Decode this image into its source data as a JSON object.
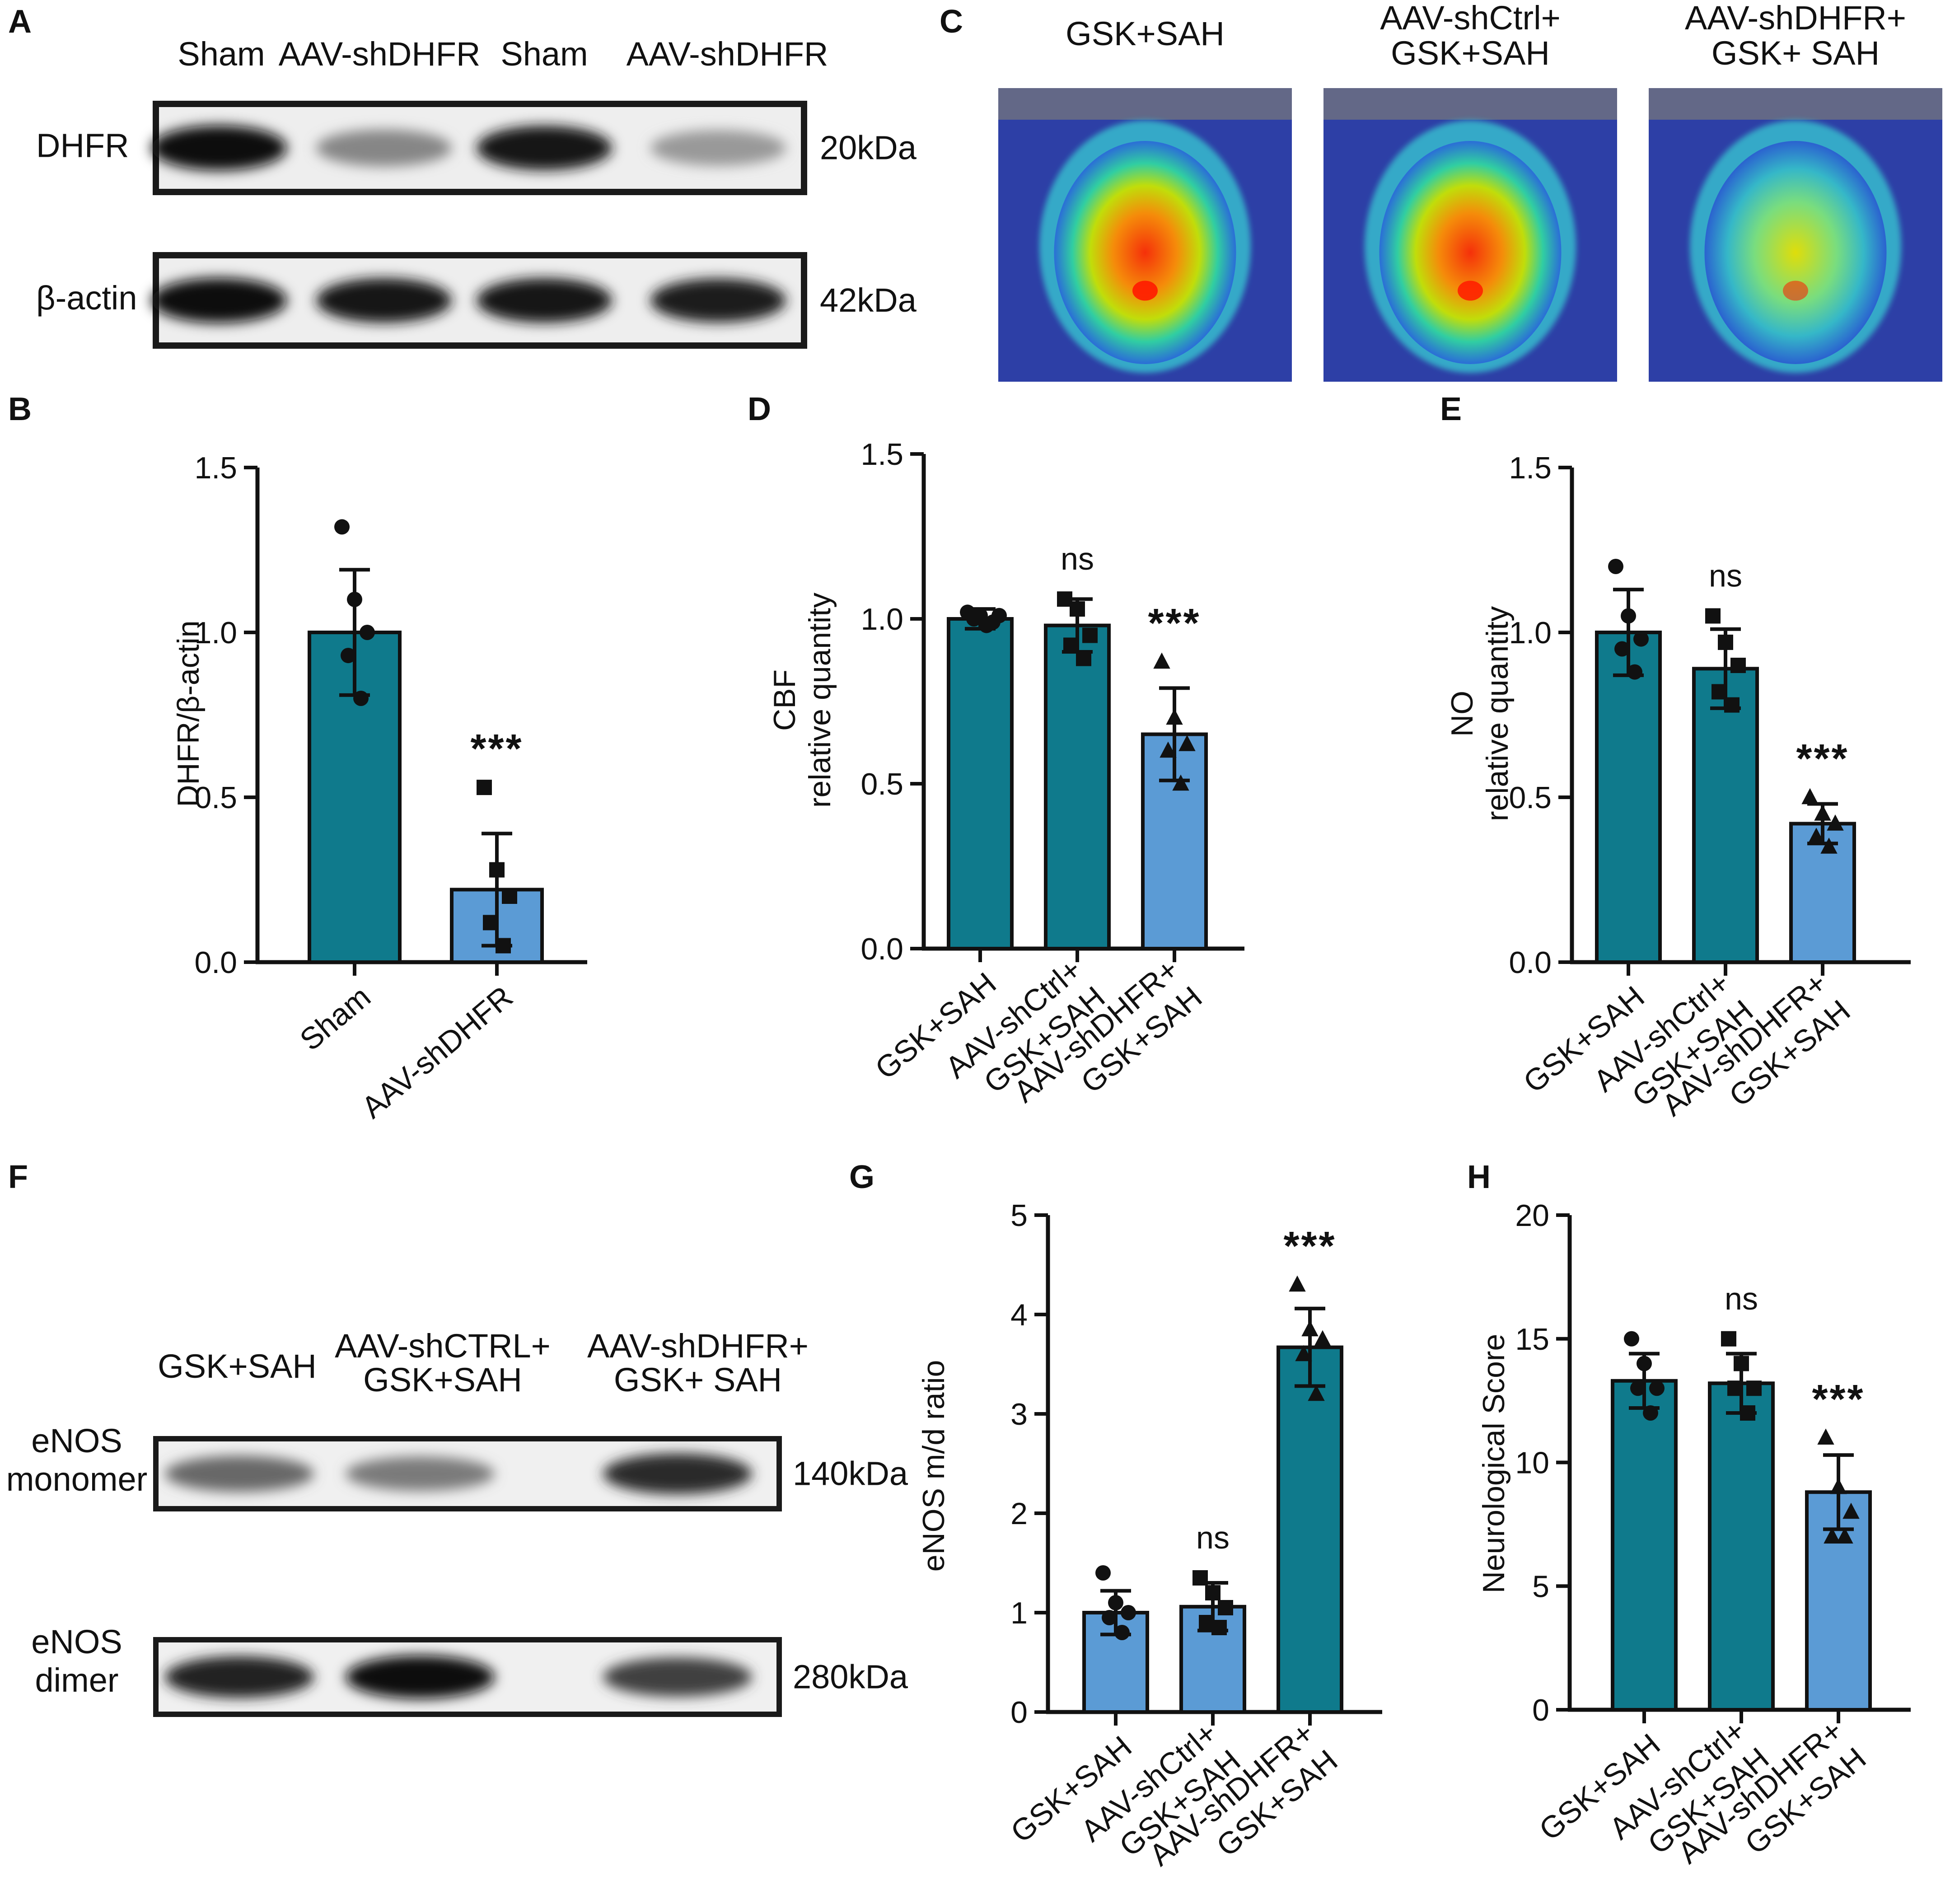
{
  "panels": {
    "A": {
      "letter": "A",
      "lanes": [
        "Sham",
        "AAV-shDHFR",
        "Sham",
        "AAV-shDHFR"
      ],
      "blots": [
        {
          "name": "DHFR",
          "size": "20kDa",
          "intensities": [
            1.0,
            0.35,
            0.95,
            0.25
          ]
        },
        {
          "name": "β-actin",
          "size": "42kDa",
          "intensities": [
            1.0,
            0.95,
            0.95,
            0.9
          ]
        }
      ]
    },
    "C": {
      "letter": "C",
      "images": [
        {
          "label_lines": [
            "GSK+SAH"
          ],
          "perfusion": 0.9
        },
        {
          "label_lines": [
            "AAV-shCtrl+",
            "GSK+SAH"
          ],
          "perfusion": 0.85
        },
        {
          "label_lines": [
            "AAV-shDHFR+",
            "GSK+ SAH"
          ],
          "perfusion": 0.55
        }
      ]
    },
    "F": {
      "letter": "F",
      "lanes": [
        [
          "GSK+SAH"
        ],
        [
          "AAV-shCTRL+",
          "GSK+SAH"
        ],
        [
          "AAV-shDHFR+",
          "GSK+ SAH"
        ]
      ],
      "blots": [
        {
          "name_lines": [
            "eNOS",
            "monomer"
          ],
          "size": "140kDa",
          "intensities": [
            0.55,
            0.45,
            0.85
          ]
        },
        {
          "name_lines": [
            "eNOS",
            "dimer"
          ],
          "size": "280kDa",
          "intensities": [
            0.9,
            1.0,
            0.75
          ]
        }
      ]
    }
  },
  "colors": {
    "teal": "#0f7a8c",
    "blue": "#5b9bd5",
    "ink": "#111111"
  },
  "chart_data": [
    {
      "panel": "B",
      "type": "bar",
      "ylabel": "DHFR/β-actin",
      "ylim": [
        0,
        1.5
      ],
      "yticks": [
        "0.0",
        "0.5",
        "1.0",
        "1.5"
      ],
      "categories": [
        [
          "Sham"
        ],
        [
          "AAV-shDHFR"
        ]
      ],
      "values": [
        1.0,
        0.22
      ],
      "sd": [
        0.19,
        0.17
      ],
      "bar_colors": [
        "teal",
        "blue"
      ],
      "markers": [
        "circle",
        "square"
      ],
      "points": [
        [
          1.32,
          1.1,
          1.0,
          0.93,
          0.8
        ],
        [
          0.53,
          0.28,
          0.2,
          0.12,
          0.05
        ]
      ],
      "annotations": [
        "",
        "***"
      ]
    },
    {
      "panel": "D",
      "type": "bar",
      "ylabel": "CBF relative quantity",
      "ylabel_lines": [
        "CBF",
        "relative quantity"
      ],
      "ylim": [
        0,
        1.5
      ],
      "yticks": [
        "0.0",
        "0.5",
        "1.0",
        "1.5"
      ],
      "categories": [
        [
          "GSK+SAH"
        ],
        [
          "AAV-shCtrl+",
          "GSK+SAH"
        ],
        [
          "AAV-shDHFR+",
          "GSK+SAH"
        ]
      ],
      "values": [
        1.0,
        0.98,
        0.65
      ],
      "sd": [
        0.03,
        0.08,
        0.14
      ],
      "bar_colors": [
        "teal",
        "teal",
        "blue"
      ],
      "markers": [
        "circle",
        "square",
        "triangle"
      ],
      "points": [
        [
          1.02,
          1.01,
          0.99,
          1.0,
          0.98,
          1.01
        ],
        [
          1.06,
          1.03,
          0.95,
          0.92,
          0.88
        ],
        [
          0.87,
          0.7,
          0.62,
          0.6,
          0.5
        ]
      ],
      "annotations": [
        "",
        "ns",
        "***"
      ]
    },
    {
      "panel": "E",
      "type": "bar",
      "ylabel": "NO relative quantity",
      "ylabel_lines": [
        "NO",
        "relative quantity"
      ],
      "ylim": [
        0,
        1.5
      ],
      "yticks": [
        "0.0",
        "0.5",
        "1.0",
        "1.5"
      ],
      "categories": [
        [
          "GSK+SAH"
        ],
        [
          "AAV-shCtrl+",
          "GSK+SAH"
        ],
        [
          "AAV-shDHFR+",
          "GSK+SAH"
        ]
      ],
      "values": [
        1.0,
        0.89,
        0.42
      ],
      "sd": [
        0.13,
        0.12,
        0.06
      ],
      "bar_colors": [
        "teal",
        "teal",
        "blue"
      ],
      "markers": [
        "circle",
        "square",
        "triangle"
      ],
      "points": [
        [
          1.2,
          1.05,
          0.98,
          0.95,
          0.88
        ],
        [
          1.05,
          0.97,
          0.9,
          0.82,
          0.78
        ],
        [
          0.5,
          0.45,
          0.42,
          0.38,
          0.35
        ]
      ],
      "annotations": [
        "",
        "ns",
        "***"
      ]
    },
    {
      "panel": "G",
      "type": "bar",
      "ylabel": "eNOS m/d ratio",
      "ylim": [
        0,
        5
      ],
      "yticks": [
        "0",
        "1",
        "2",
        "3",
        "4",
        "5"
      ],
      "categories": [
        [
          "GSK+SAH"
        ],
        [
          "AAV-shCtrl+",
          "GSK+SAH"
        ],
        [
          "AAV-shDHFR+",
          "GSK+SAH"
        ]
      ],
      "values": [
        1.0,
        1.06,
        3.67
      ],
      "sd": [
        0.22,
        0.24,
        0.39
      ],
      "bar_colors": [
        "blue",
        "blue",
        "teal"
      ],
      "markers": [
        "circle",
        "square",
        "triangle"
      ],
      "points": [
        [
          1.4,
          1.1,
          1.0,
          0.95,
          0.8
        ],
        [
          1.35,
          1.2,
          1.05,
          0.9,
          0.85
        ],
        [
          4.3,
          3.85,
          3.75,
          3.6,
          3.2
        ]
      ],
      "annotations": [
        "",
        "ns",
        "***"
      ]
    },
    {
      "panel": "H",
      "type": "bar",
      "ylabel": "Neurological Score",
      "ylim": [
        0,
        20
      ],
      "yticks": [
        "0",
        "5",
        "10",
        "15",
        "20"
      ],
      "categories": [
        [
          "GSK+SAH"
        ],
        [
          "AAV-shCtrl+",
          "GSK+SAH"
        ],
        [
          "AAV-shDHFR+",
          "GSK+SAH"
        ]
      ],
      "values": [
        13.3,
        13.2,
        8.8
      ],
      "sd": [
        1.1,
        1.2,
        1.5
      ],
      "bar_colors": [
        "teal",
        "teal",
        "blue"
      ],
      "markers": [
        "circle",
        "square",
        "triangle"
      ],
      "points": [
        [
          15,
          14,
          13,
          13,
          12
        ],
        [
          15,
          14,
          13,
          13,
          12
        ],
        [
          11,
          9,
          8,
          7,
          7
        ]
      ],
      "annotations": [
        "",
        "ns",
        "***"
      ]
    }
  ]
}
